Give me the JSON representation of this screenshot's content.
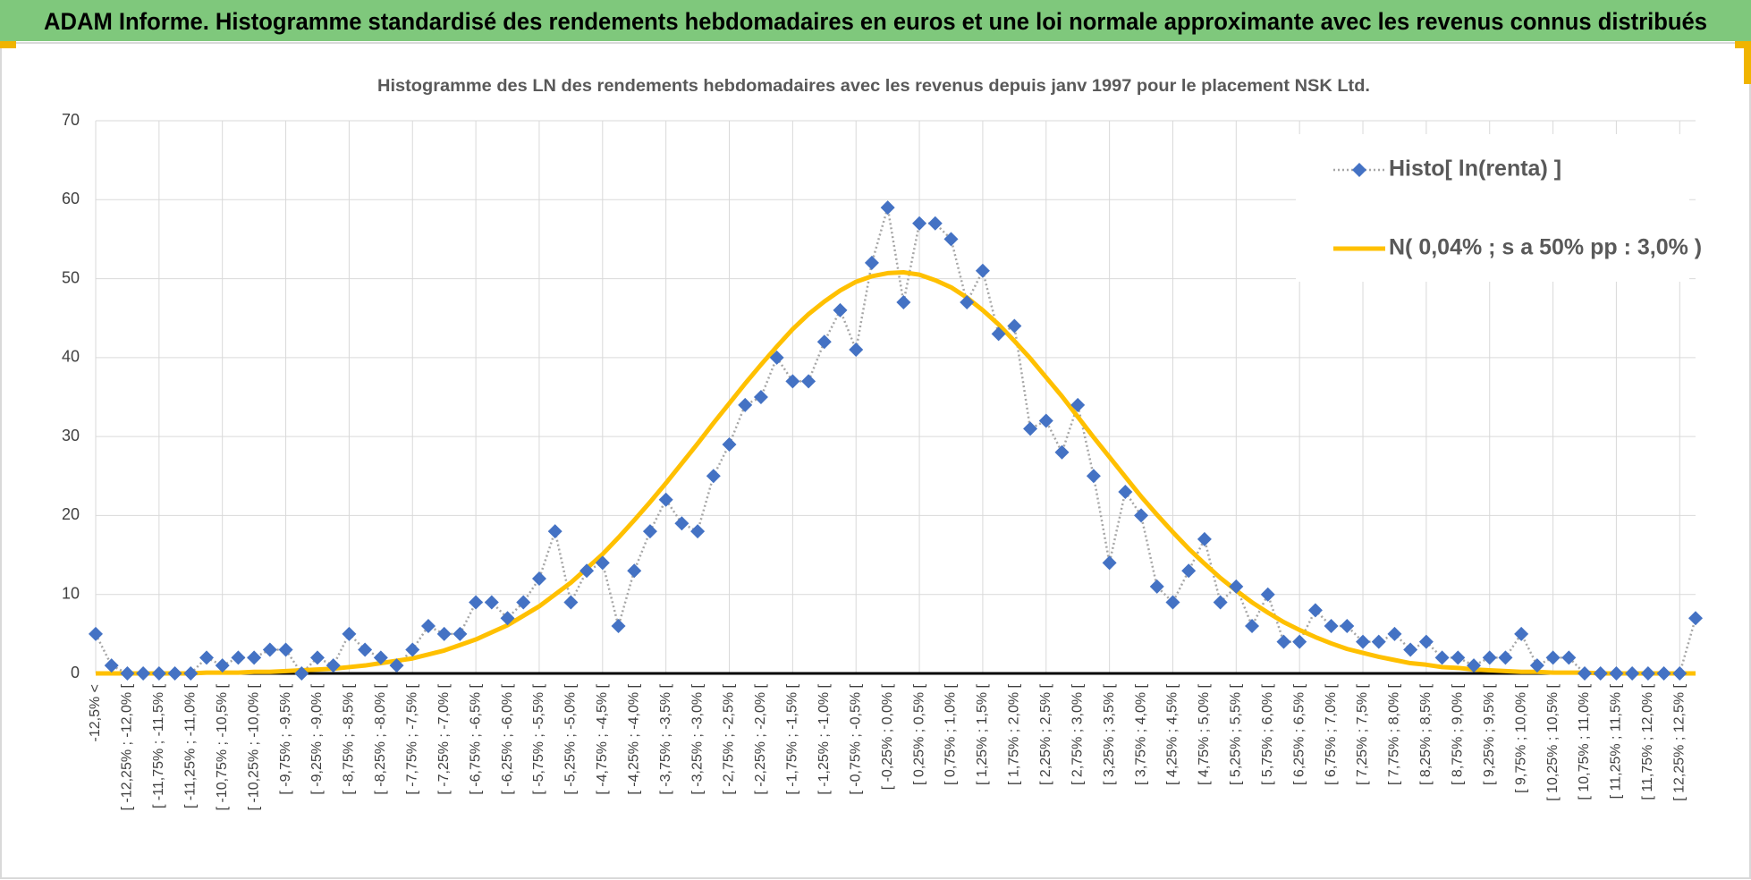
{
  "chart_data": {
    "type": "line",
    "title": "ADAM Informe. Histogramme standardisé des rendements hebdomadaires en euros et une loi normale approximante avec les revenus connus distribués",
    "subtitle": "Histogramme des LN des rendements hebdomadaires avec les revenus depuis janv 1997 pour le placement NSK Ltd.",
    "categories": [
      "-12,5% <",
      null,
      "[ -12,25% ; -12,0% [",
      null,
      "[ -11,75% ; -11,5% [",
      null,
      "[ -11,25% ; -11,0% [",
      null,
      "[ -10,75% ; -10,5% [",
      null,
      "[ -10,25% ; -10,0% [",
      null,
      "[ -9,75% ; -9,5% [",
      null,
      "[ -9,25% ; -9,0% [",
      null,
      "[ -8,75% ; -8,5% [",
      null,
      "[ -8,25% ; -8,0% [",
      null,
      "[ -7,75% ; -7,5% [",
      null,
      "[ -7,25% ; -7,0% [",
      null,
      "[ -6,75% ; -6,5% [",
      null,
      "[ -6,25% ; -6,0% [",
      null,
      "[ -5,75% ; -5,5% [",
      null,
      "[ -5,25% ; -5,0% [",
      null,
      "[ -4,75% ; -4,5% [",
      null,
      "[ -4,25% ; -4,0% [",
      null,
      "[ -3,75% ; -3,5% [",
      null,
      "[ -3,25% ; -3,0% [",
      null,
      "[ -2,75% ; -2,5% [",
      null,
      "[ -2,25% ; -2,0% [",
      null,
      "[ -1,75% ; -1,5% [",
      null,
      "[ -1,25% ; -1,0% [",
      null,
      "[ -0,75% ; -0,5% [",
      null,
      "[ -0,25% ; 0,0% [",
      null,
      "[ 0,25% ; 0,5% [",
      null,
      "[ 0,75% ; 1,0% [",
      null,
      "[ 1,25% ; 1,5% [",
      null,
      "[ 1,75% ; 2,0% [",
      null,
      "[ 2,25% ; 2,5% [",
      null,
      "[ 2,75% ; 3,0% [",
      null,
      "[ 3,25% ; 3,5% [",
      null,
      "[ 3,75% ; 4,0% [",
      null,
      "[ 4,25% ; 4,5% [",
      null,
      "[ 4,75% ; 5,0% [",
      null,
      "[ 5,25% ; 5,5% [",
      null,
      "[ 5,75% ; 6,0% [",
      null,
      "[ 6,25% ; 6,5% [",
      null,
      "[ 6,75% ; 7,0% [",
      null,
      "[ 7,25% ; 7,5% [",
      null,
      "[ 7,75% ; 8,0% [",
      null,
      "[ 8,25% ; 8,5% [",
      null,
      "[ 8,75% ; 9,0% [",
      null,
      "[ 9,25% ; 9,5% [",
      null,
      "[ 9,75% ; 10,0% [",
      null,
      "[ 10,25% ; 10,5% [",
      null,
      "[ 10,75% ; 11,0% [",
      null,
      "[ 11,25% ; 11,5% [",
      null,
      "[ 11,75% ; 12,0% [",
      null,
      "[ 12,25% ; 12,5% [",
      null
    ],
    "series": [
      {
        "name": "Histo[ ln(renta) ]",
        "color": "#4472c4",
        "line_color": "#a6a6a6",
        "marker": "diamond",
        "values": [
          5,
          1,
          0,
          0,
          0,
          0,
          0,
          2,
          1,
          2,
          2,
          3,
          3,
          0,
          2,
          1,
          5,
          3,
          2,
          1,
          3,
          6,
          5,
          5,
          9,
          9,
          7,
          9,
          12,
          18,
          9,
          13,
          14,
          6,
          13,
          18,
          22,
          19,
          18,
          25,
          29,
          34,
          35,
          40,
          37,
          37,
          42,
          46,
          41,
          52,
          59,
          47,
          57,
          57,
          55,
          47,
          51,
          43,
          44,
          31,
          32,
          28,
          34,
          25,
          14,
          23,
          20,
          11,
          9,
          13,
          17,
          9,
          11,
          6,
          10,
          4,
          4,
          8,
          6,
          6,
          4,
          4,
          5,
          3,
          4,
          2,
          2,
          1,
          2,
          2,
          5,
          1,
          2,
          2,
          0,
          0,
          0,
          0,
          0,
          0,
          0,
          7
        ]
      },
      {
        "name": "N( 0,04% ; s a 50% pp : 3,0% )",
        "color": "#ffc000",
        "values": [
          0,
          0,
          0,
          0,
          0,
          0,
          0,
          0.1,
          0.1,
          0.1,
          0.2,
          0.2,
          0.3,
          0.4,
          0.5,
          0.6,
          0.8,
          1.0,
          1.3,
          1.6,
          1.9,
          2.4,
          2.9,
          3.6,
          4.3,
          5.2,
          6.1,
          7.3,
          8.5,
          10.0,
          11.5,
          13.3,
          15.1,
          17.2,
          19.4,
          21.7,
          24.1,
          26.6,
          29.1,
          31.7,
          34.2,
          36.7,
          39.1,
          41.4,
          43.6,
          45.5,
          47.1,
          48.5,
          49.6,
          50.3,
          50.7,
          50.8,
          50.5,
          49.8,
          48.9,
          47.6,
          46.0,
          44.2,
          42.1,
          39.9,
          37.5,
          35.1,
          32.5,
          29.9,
          27.4,
          24.9,
          22.4,
          20.1,
          17.9,
          15.8,
          13.9,
          12.1,
          10.5,
          9.0,
          7.7,
          6.5,
          5.5,
          4.6,
          3.8,
          3.1,
          2.6,
          2.1,
          1.7,
          1.3,
          1.1,
          0.8,
          0.7,
          0.5,
          0.4,
          0.3,
          0.2,
          0.2,
          0.1,
          0.1,
          0.1,
          0,
          0,
          0,
          0,
          0,
          0,
          0
        ]
      }
    ],
    "ylim": [
      0,
      70
    ],
    "yticks": [
      0,
      10,
      20,
      30,
      40,
      50,
      60,
      70
    ],
    "grid": true,
    "legend": "upper right"
  }
}
